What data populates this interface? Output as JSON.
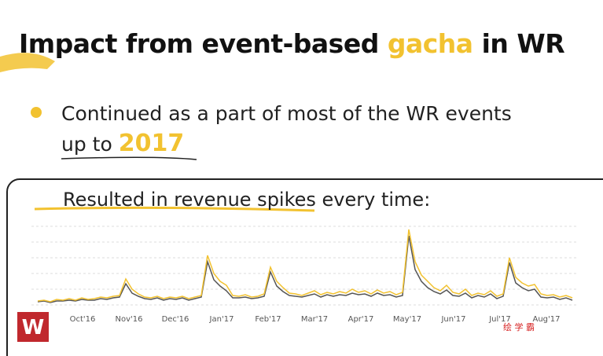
{
  "slide": {
    "title": [
      "Impact from event-based",
      "gacha",
      "in WR"
    ],
    "bullet": [
      "Continued as a part of most of the WR events",
      "up to",
      "2017"
    ],
    "logo": "W",
    "watermark": "绘 学 霸"
  },
  "chart_data": {
    "type": "line",
    "title": "Resulted in revenue spikes every time:",
    "xtick_labels": [
      "Oct'16",
      "Nov'16",
      "Dec'16",
      "Jan'17",
      "Feb'17",
      "Mar'17",
      "Apr'17",
      "May'17",
      "Jun'17",
      "Jul'17",
      "Aug'17"
    ],
    "ylim": [
      0,
      100
    ],
    "yticks": [
      0,
      20,
      40,
      60,
      80,
      100
    ],
    "grid": true,
    "series": [
      {
        "color": "#f2c230",
        "values": [
          5,
          6,
          4,
          7,
          6,
          8,
          6,
          9,
          7,
          8,
          10,
          9,
          11,
          12,
          33,
          20,
          14,
          10,
          9,
          11,
          8,
          10,
          9,
          11,
          8,
          10,
          12,
          63,
          40,
          30,
          25,
          12,
          11,
          13,
          10,
          11,
          14,
          48,
          30,
          22,
          15,
          14,
          12,
          15,
          18,
          13,
          16,
          14,
          17,
          15,
          20,
          16,
          18,
          14,
          19,
          15,
          17,
          13,
          16,
          96,
          55,
          38,
          30,
          22,
          18,
          25,
          16,
          14,
          20,
          12,
          15,
          13,
          18,
          11,
          14,
          60,
          35,
          28,
          24,
          26,
          14,
          12,
          13,
          10,
          12,
          9
        ]
      },
      {
        "color": "#555555",
        "values": [
          4,
          5,
          3,
          5,
          5,
          6,
          5,
          7,
          6,
          6,
          8,
          7,
          9,
          10,
          27,
          15,
          11,
          8,
          7,
          9,
          6,
          8,
          7,
          9,
          6,
          8,
          10,
          55,
          32,
          24,
          18,
          9,
          9,
          10,
          8,
          9,
          11,
          42,
          24,
          17,
          12,
          11,
          10,
          12,
          14,
          10,
          13,
          11,
          13,
          12,
          15,
          13,
          14,
          11,
          15,
          12,
          13,
          10,
          12,
          88,
          45,
          30,
          22,
          17,
          14,
          19,
          12,
          11,
          15,
          9,
          12,
          10,
          14,
          8,
          11,
          54,
          28,
          22,
          18,
          20,
          10,
          9,
          10,
          7,
          9,
          6
        ]
      }
    ]
  }
}
